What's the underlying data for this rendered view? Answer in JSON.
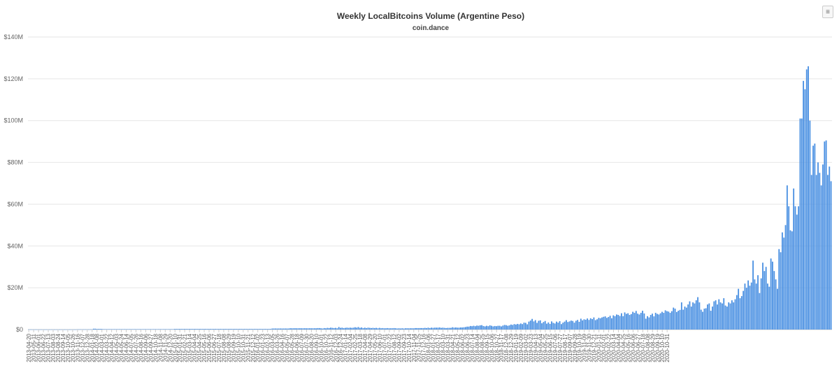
{
  "chart_data": {
    "type": "bar",
    "title": "Weekly LocalBitcoins Volume (Argentine Peso)",
    "subtitle": "coin.dance",
    "xlabel": "",
    "ylabel": "",
    "ylim": [
      0,
      140000000
    ],
    "yticks": [
      0,
      20000000,
      40000000,
      60000000,
      80000000,
      100000000,
      120000000,
      140000000
    ],
    "ytick_labels": [
      "$0",
      "$20M",
      "$40M",
      "$60M",
      "$80M",
      "$100M",
      "$120M",
      "$140M"
    ],
    "grid": true,
    "legend": "none",
    "bar_color": "#4a90e2",
    "first_week": "2013-04-20",
    "tick_labels": [
      "2013-04-20",
      "2013-05-11",
      "2013-06-01",
      "2013-06-22",
      "2013-07-13",
      "2013-08-03",
      "2013-08-24",
      "2013-09-14",
      "2013-10-05",
      "2013-10-26",
      "2013-11-16",
      "2013-12-07",
      "2013-12-28",
      "2014-01-18",
      "2014-02-08",
      "2014-03-01",
      "2014-03-22",
      "2014-04-12",
      "2014-05-03",
      "2014-05-24",
      "2014-06-14",
      "2014-07-05",
      "2014-07-26",
      "2014-08-16",
      "2014-09-06",
      "2014-09-27",
      "2014-10-18",
      "2014-11-08",
      "2014-11-29",
      "2014-12-20",
      "2015-01-10",
      "2015-01-31",
      "2015-02-21",
      "2015-03-14",
      "2015-04-04",
      "2015-04-25",
      "2015-05-16",
      "2015-06-06",
      "2015-06-27",
      "2015-07-18",
      "2015-08-08",
      "2015-08-29",
      "2015-09-19",
      "2015-10-10",
      "2015-10-31",
      "2015-11-21",
      "2015-12-12",
      "2016-01-02",
      "2016-01-23",
      "2016-02-13",
      "2016-03-05",
      "2016-03-26",
      "2016-04-16",
      "2016-05-07",
      "2016-05-28",
      "2016-06-18",
      "2016-07-09",
      "2016-07-30",
      "2016-08-20",
      "2016-09-10",
      "2016-10-01",
      "2016-10-22",
      "2016-11-12",
      "2016-12-03",
      "2016-12-24",
      "2017-01-14",
      "2017-02-04",
      "2017-02-25",
      "2017-03-18",
      "2017-04-08",
      "2017-04-29",
      "2017-05-20",
      "2017-06-10",
      "2017-07-01",
      "2017-07-22",
      "2017-08-12",
      "2017-09-02",
      "2017-09-23",
      "2017-10-14",
      "2017-11-04",
      "2017-11-25",
      "2017-12-16",
      "2018-01-06",
      "2018-01-27",
      "2018-02-17",
      "2018-03-10",
      "2018-03-31",
      "2018-04-21",
      "2018-05-12",
      "2018-06-02",
      "2018-06-23",
      "2018-07-14",
      "2018-08-04",
      "2018-08-25",
      "2018-09-15",
      "2018-10-06",
      "2018-10-27",
      "2018-11-17",
      "2018-12-08",
      "2018-12-29",
      "2019-01-19",
      "2019-02-09",
      "2019-03-02",
      "2019-03-23",
      "2019-04-13",
      "2019-05-04",
      "2019-05-25",
      "2019-06-15",
      "2019-07-06",
      "2019-07-27",
      "2019-08-17",
      "2019-09-07",
      "2019-09-28",
      "2019-10-19",
      "2019-11-09",
      "2019-11-30",
      "2019-12-21",
      "2020-01-11",
      "2020-02-01",
      "2020-02-22",
      "2020-03-14",
      "2020-04-04",
      "2020-04-25",
      "2020-05-16",
      "2020-06-06",
      "2020-06-27",
      "2020-07-18",
      "2020-08-08",
      "2020-08-29",
      "2020-09-19",
      "2020-10-10",
      "2020-10-31"
    ],
    "values_millions": [
      0.05,
      0.05,
      0.05,
      0.05,
      0.05,
      0.05,
      0.05,
      0.05,
      0.05,
      0.05,
      0.05,
      0.05,
      0.05,
      0.05,
      0.05,
      0.05,
      0.05,
      0.05,
      0.05,
      0.05,
      0.05,
      0.05,
      0.05,
      0.05,
      0.05,
      0.05,
      0.05,
      0.05,
      0.05,
      0.05,
      0.1,
      0.1,
      0.1,
      0.1,
      0.1,
      0.1,
      0.1,
      0.1,
      0.1,
      0.1,
      0.4,
      0.4,
      0.3,
      0.3,
      0.3,
      0.3,
      0.2,
      0.2,
      0.2,
      0.2,
      0.2,
      0.2,
      0.2,
      0.2,
      0.2,
      0.2,
      0.2,
      0.2,
      0.2,
      0.2,
      0.2,
      0.2,
      0.2,
      0.2,
      0.2,
      0.2,
      0.2,
      0.2,
      0.2,
      0.2,
      0.2,
      0.2,
      0.2,
      0.2,
      0.2,
      0.2,
      0.2,
      0.2,
      0.2,
      0.2,
      0.2,
      0.2,
      0.2,
      0.2,
      0.2,
      0.2,
      0.2,
      0.2,
      0.2,
      0.2,
      0.3,
      0.3,
      0.3,
      0.3,
      0.3,
      0.3,
      0.3,
      0.3,
      0.3,
      0.3,
      0.3,
      0.3,
      0.3,
      0.3,
      0.3,
      0.3,
      0.3,
      0.3,
      0.3,
      0.3,
      0.3,
      0.3,
      0.3,
      0.3,
      0.3,
      0.3,
      0.3,
      0.3,
      0.3,
      0.3,
      0.3,
      0.3,
      0.3,
      0.3,
      0.3,
      0.3,
      0.3,
      0.3,
      0.3,
      0.3,
      0.3,
      0.3,
      0.3,
      0.3,
      0.3,
      0.3,
      0.3,
      0.3,
      0.3,
      0.3,
      0.3,
      0.3,
      0.3,
      0.3,
      0.3,
      0.3,
      0.3,
      0.3,
      0.3,
      0.3,
      0.5,
      0.5,
      0.5,
      0.5,
      0.5,
      0.5,
      0.5,
      0.5,
      0.5,
      0.5,
      0.5,
      0.6,
      0.6,
      0.6,
      0.6,
      0.6,
      0.6,
      0.6,
      0.6,
      0.6,
      0.6,
      0.6,
      0.6,
      0.6,
      0.6,
      0.6,
      0.6,
      0.6,
      0.7,
      0.7,
      0.6,
      0.5,
      0.7,
      0.6,
      0.8,
      0.7,
      0.9,
      0.8,
      0.7,
      0.8,
      0.6,
      1.2,
      0.8,
      0.9,
      0.7,
      0.8,
      0.9,
      0.8,
      0.9,
      0.8,
      0.9,
      1.1,
      0.9,
      1.2,
      0.8,
      1.0,
      0.7,
      0.9,
      0.7,
      0.9,
      0.8,
      0.7,
      0.8,
      0.7,
      0.8,
      0.6,
      0.8,
      0.6,
      0.7,
      0.6,
      0.6,
      0.7,
      0.6,
      0.6,
      0.6,
      0.7,
      0.6,
      0.5,
      0.6,
      0.5,
      0.6,
      0.5,
      0.6,
      0.6,
      0.6,
      0.6,
      0.6,
      0.6,
      0.7,
      0.7,
      0.7,
      0.7,
      0.7,
      0.7,
      0.8,
      0.7,
      0.9,
      0.7,
      0.9,
      0.8,
      0.9,
      0.9,
      0.9,
      1.0,
      0.8,
      0.9,
      0.8,
      0.7,
      0.8,
      0.8,
      0.8,
      1.1,
      0.9,
      1.0,
      0.9,
      0.9,
      1.0,
      1.0,
      1.1,
      1.2,
      1.4,
      1.4,
      1.7,
      1.6,
      1.8,
      1.6,
      1.9,
      1.8,
      2.0,
      2.1,
      1.7,
      1.5,
      1.8,
      1.6,
      2.0,
      1.8,
      1.5,
      1.7,
      1.6,
      1.8,
      1.8,
      1.5,
      1.9,
      2.2,
      2.1,
      1.8,
      2.0,
      2.4,
      2.2,
      2.6,
      2.4,
      2.7,
      2.5,
      2.9,
      2.6,
      3.3,
      3.2,
      2.5,
      3.8,
      4.3,
      5.1,
      3.9,
      4.5,
      3.2,
      4.2,
      4.4,
      3.0,
      3.6,
      4.1,
      2.8,
      3.4,
      2.7,
      3.9,
      3.2,
      2.9,
      3.8,
      3.3,
      4.0,
      2.6,
      3.3,
      3.8,
      4.5,
      3.6,
      3.9,
      4.3,
      4.1,
      3.3,
      4.2,
      4.6,
      3.7,
      5.2,
      4.4,
      4.9,
      4.7,
      5.3,
      4.6,
      5.4,
      5.0,
      5.8,
      4.5,
      4.9,
      5.6,
      5.4,
      5.8,
      6.1,
      6.3,
      5.6,
      6.0,
      6.6,
      5.4,
      6.8,
      6.4,
      7.2,
      7.0,
      6.5,
      7.8,
      6.4,
      8.2,
      7.5,
      7.8,
      7.0,
      7.4,
      8.5,
      8.0,
      8.9,
      7.6,
      7.2,
      8.0,
      9.0,
      7.7,
      5.2,
      6.4,
      5.8,
      7.0,
      7.6,
      6.3,
      8.0,
      7.5,
      7.2,
      7.8,
      8.5,
      8.0,
      9.2,
      8.8,
      8.6,
      8.0,
      8.8,
      10.5,
      10.0,
      8.4,
      9.0,
      9.4,
      13.0,
      9.5,
      11.0,
      10.5,
      12.0,
      13.5,
      11.0,
      13.0,
      12.5,
      14.0,
      15.5,
      13.0,
      9.5,
      8.5,
      10.0,
      10.2,
      12.0,
      12.5,
      9.0,
      11.0,
      13.5,
      14.0,
      12.0,
      14.5,
      13.0,
      12.5,
      15.0,
      11.5,
      11.0,
      13.0,
      12.5,
      14.0,
      13.0,
      14.5,
      16.5,
      19.5,
      15.0,
      16.0,
      18.5,
      22.0,
      20.0,
      23.5,
      21.0,
      22.5,
      33.0,
      24.0,
      22.0,
      26.0,
      17.5,
      24.5,
      32.0,
      28.0,
      30.0,
      22.0,
      20.5,
      34.0,
      32.5,
      28.0,
      24.0,
      19.5,
      38.5,
      37.0,
      46.5,
      44.0,
      50.0,
      69.0,
      59.0,
      47.5,
      47.0,
      67.5,
      59.0,
      55.0,
      59.0,
      101.0,
      101.0,
      119.0,
      115.0,
      124.5,
      126.0,
      100.0,
      74.0,
      88.0,
      89.0,
      74.0,
      80.0,
      75.0,
      69.0,
      79.0,
      90.0,
      90.5,
      74.0,
      78.0,
      71.0
    ]
  },
  "toolbar": {
    "menu_icon": "hamburger-menu-icon",
    "menu_glyph": "≡"
  }
}
